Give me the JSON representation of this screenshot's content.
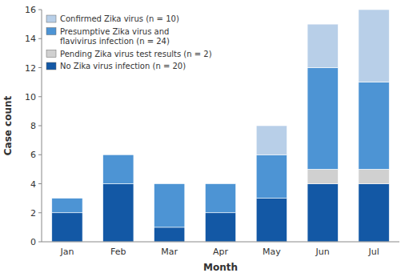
{
  "chart_data": {
    "type": "bar",
    "stacked": true,
    "x_label": "Month",
    "y_label": "Case count",
    "categories": [
      "Jan",
      "Feb",
      "Mar",
      "Apr",
      "May",
      "Jun",
      "Jul"
    ],
    "series": [
      {
        "name": "No Zika virus infection (n = 20)",
        "color": "#1358a5",
        "values": [
          2,
          4,
          1,
          2,
          3,
          4,
          4
        ]
      },
      {
        "name": "Pending Zika virus test results (n = 2)",
        "color": "#d0d0d0",
        "values": [
          0,
          0,
          0,
          0,
          0,
          1,
          1
        ]
      },
      {
        "name": "Presumptive Zika virus and\nflavivirus infection (n = 24)",
        "color": "#4d94d4",
        "values": [
          1,
          2,
          3,
          2,
          3,
          7,
          6
        ]
      },
      {
        "name": "Confirmed Zika virus (n = 10)",
        "color": "#b8cfe8",
        "values": [
          0,
          0,
          0,
          0,
          2,
          3,
          5
        ]
      }
    ],
    "ylim": [
      0,
      16
    ],
    "yticks": [
      0,
      2,
      4,
      6,
      8,
      10,
      12,
      14,
      16
    ],
    "grid": false,
    "legend": "upper left"
  }
}
